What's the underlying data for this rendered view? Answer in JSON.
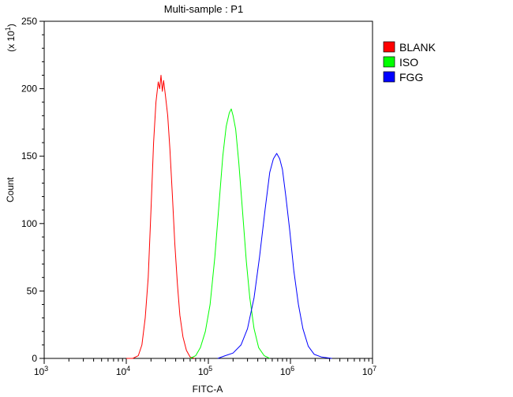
{
  "chart_data": {
    "type": "line",
    "title": "Multi-sample : P1",
    "xlabel": "FITC-A",
    "ylabel": "Count",
    "y_multiplier_label": {
      "prefix": "(x 10",
      "exponent": "1",
      "suffix": ")"
    },
    "x_scale": "log",
    "xlim": [
      1000,
      10000000
    ],
    "ylim": [
      0,
      250
    ],
    "x_ticks": [
      {
        "base": "10",
        "exp": "3",
        "value": 1000
      },
      {
        "base": "10",
        "exp": "4",
        "value": 10000
      },
      {
        "base": "10",
        "exp": "5",
        "value": 100000
      },
      {
        "base": "10",
        "exp": "6",
        "value": 1000000
      },
      {
        "base": "10",
        "exp": "7",
        "value": 10000000
      }
    ],
    "y_ticks": [
      "0",
      "50",
      "100",
      "150",
      "200",
      "250"
    ],
    "legend_position": "top-right (outside plot)",
    "grid": false,
    "series": [
      {
        "name": "BLANK",
        "color": "#ff0000",
        "points": [
          [
            10000,
            0
          ],
          [
            12000,
            0
          ],
          [
            14000,
            2
          ],
          [
            15500,
            10
          ],
          [
            17000,
            30
          ],
          [
            18500,
            60
          ],
          [
            20000,
            110
          ],
          [
            21500,
            160
          ],
          [
            23000,
            190
          ],
          [
            24500,
            205
          ],
          [
            25500,
            200
          ],
          [
            26500,
            210
          ],
          [
            27500,
            198
          ],
          [
            28500,
            206
          ],
          [
            30000,
            195
          ],
          [
            32000,
            180
          ],
          [
            34000,
            155
          ],
          [
            36500,
            120
          ],
          [
            39000,
            85
          ],
          [
            42000,
            55
          ],
          [
            45000,
            32
          ],
          [
            49000,
            16
          ],
          [
            54000,
            6
          ],
          [
            60000,
            1
          ],
          [
            68000,
            0
          ]
        ]
      },
      {
        "name": "ISO",
        "color": "#00ff00",
        "points": [
          [
            60000,
            0
          ],
          [
            70000,
            2
          ],
          [
            80000,
            8
          ],
          [
            92000,
            20
          ],
          [
            105000,
            40
          ],
          [
            120000,
            75
          ],
          [
            135000,
            115
          ],
          [
            150000,
            150
          ],
          [
            165000,
            172
          ],
          [
            180000,
            182
          ],
          [
            190000,
            185
          ],
          [
            200000,
            180
          ],
          [
            215000,
            170
          ],
          [
            235000,
            145
          ],
          [
            260000,
            110
          ],
          [
            290000,
            72
          ],
          [
            320000,
            45
          ],
          [
            360000,
            22
          ],
          [
            410000,
            8
          ],
          [
            480000,
            2
          ],
          [
            560000,
            0
          ]
        ]
      },
      {
        "name": "FGG",
        "color": "#0000ff",
        "points": [
          [
            130000,
            0
          ],
          [
            160000,
            2
          ],
          [
            200000,
            4
          ],
          [
            250000,
            10
          ],
          [
            300000,
            22
          ],
          [
            360000,
            45
          ],
          [
            420000,
            75
          ],
          [
            490000,
            110
          ],
          [
            560000,
            138
          ],
          [
            620000,
            148
          ],
          [
            680000,
            152
          ],
          [
            740000,
            148
          ],
          [
            800000,
            140
          ],
          [
            880000,
            120
          ],
          [
            980000,
            95
          ],
          [
            1100000,
            65
          ],
          [
            1250000,
            40
          ],
          [
            1420000,
            22
          ],
          [
            1650000,
            9
          ],
          [
            1950000,
            3
          ],
          [
            2400000,
            1
          ],
          [
            3200000,
            0
          ]
        ]
      }
    ]
  }
}
